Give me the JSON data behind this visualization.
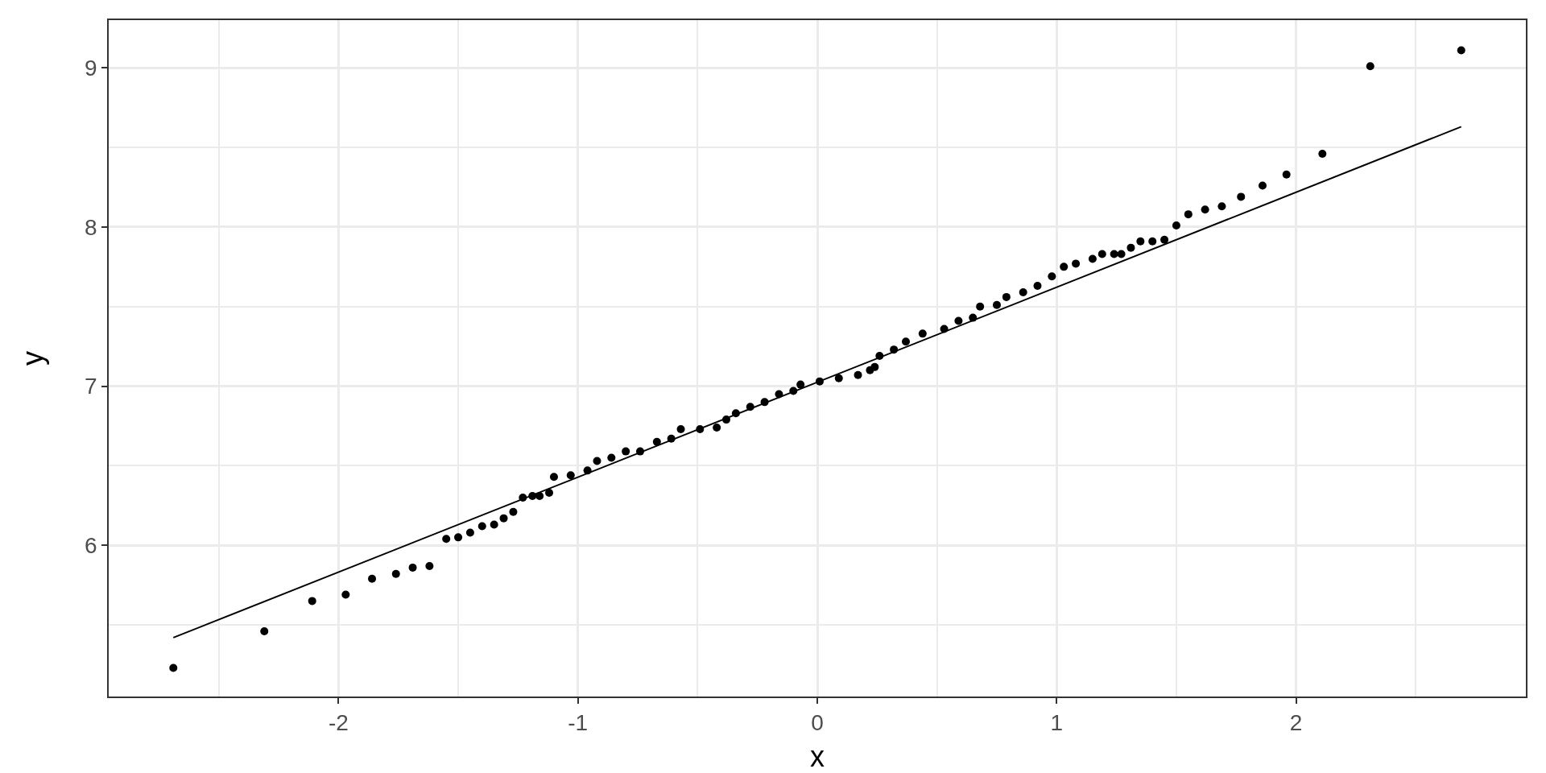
{
  "chart_data": {
    "type": "scatter",
    "xlabel": "x",
    "ylabel": "y",
    "xlim": [
      -2.96,
      2.96
    ],
    "ylim": [
      5.05,
      9.3
    ],
    "xticks": [
      -2,
      -1,
      0,
      1,
      2
    ],
    "yticks": [
      6,
      7,
      8,
      9
    ],
    "grid": true,
    "series": [
      {
        "color": "#000000",
        "marker": "circle",
        "x": [
          -2.69,
          -2.31,
          -2.11,
          -1.97,
          -1.86,
          -1.76,
          -1.69,
          -1.62,
          -1.55,
          -1.5,
          -1.45,
          -1.4,
          -1.35,
          -1.31,
          -1.27,
          -1.23,
          -1.19,
          -1.16,
          -1.12,
          -1.1,
          -1.03,
          -0.96,
          -0.92,
          -0.86,
          -0.8,
          -0.74,
          -0.67,
          -0.61,
          -0.57,
          -0.49,
          -0.42,
          -0.38,
          -0.34,
          -0.28,
          -0.22,
          -0.16,
          -0.1,
          -0.07,
          0.01,
          0.09,
          0.17,
          0.22,
          0.24,
          0.26,
          0.32,
          0.37,
          0.44,
          0.53,
          0.59,
          0.65,
          0.68,
          0.75,
          0.79,
          0.86,
          0.92,
          0.98,
          1.03,
          1.08,
          1.15,
          1.19,
          1.24,
          1.27,
          1.31,
          1.35,
          1.4,
          1.45,
          1.5,
          1.55,
          1.62,
          1.69,
          1.77,
          1.86,
          1.96,
          2.11,
          2.31,
          2.69
        ],
        "values": [
          5.23,
          5.46,
          5.65,
          5.69,
          5.79,
          5.82,
          5.86,
          5.87,
          6.04,
          6.05,
          6.08,
          6.12,
          6.13,
          6.17,
          6.21,
          6.3,
          6.31,
          6.31,
          6.33,
          6.43,
          6.44,
          6.47,
          6.53,
          6.55,
          6.59,
          6.59,
          6.65,
          6.67,
          6.73,
          6.73,
          6.74,
          6.79,
          6.83,
          6.87,
          6.9,
          6.95,
          6.97,
          7.01,
          7.03,
          7.05,
          7.07,
          7.1,
          7.12,
          7.19,
          7.23,
          7.28,
          7.33,
          7.36,
          7.41,
          7.43,
          7.5,
          7.51,
          7.56,
          7.59,
          7.63,
          7.69,
          7.75,
          7.77,
          7.8,
          7.83,
          7.83,
          7.83,
          7.87,
          7.91,
          7.91,
          7.92,
          8.01,
          8.08,
          8.11,
          8.13,
          8.19,
          8.26,
          8.33,
          8.46,
          9.01,
          9.11
        ]
      },
      {
        "type": "line",
        "marker": "none",
        "color": "#000000",
        "x": [
          -2.69,
          2.69
        ],
        "values": [
          5.42,
          8.63
        ]
      }
    ]
  }
}
